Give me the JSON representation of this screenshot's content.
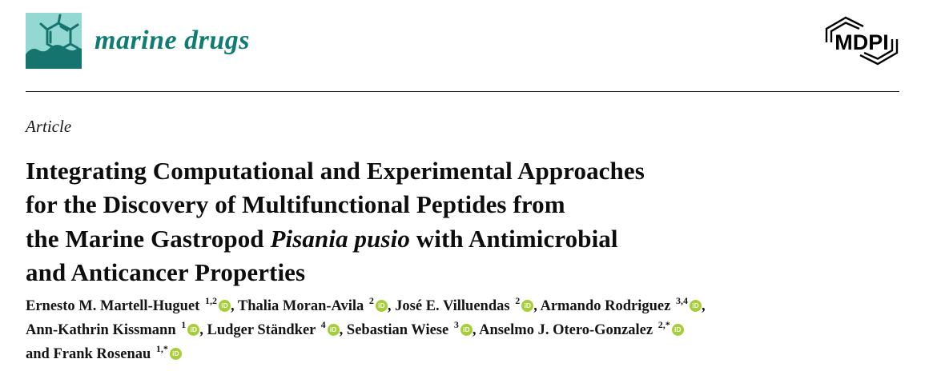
{
  "header": {
    "journal_name": "marine drugs",
    "publisher": "MDPI",
    "journal_color": "#0e7c72",
    "logo_bg_color": "#93d8d2",
    "logo_dark_color": "#15756e"
  },
  "article": {
    "type_label": "Article",
    "title_lines": [
      [
        {
          "text": "Integrating Computational and Experimental Approaches"
        }
      ],
      [
        {
          "text": "for the Discovery of Multifunctional Peptides from"
        }
      ],
      [
        {
          "text": "the Marine Gastropod "
        },
        {
          "text": "Pisania pusio",
          "italic": true
        },
        {
          "text": " with Antimicrobial"
        }
      ],
      [
        {
          "text": "and Anticancer Properties"
        }
      ]
    ]
  },
  "authors": {
    "orcid_color": "#a6ce39",
    "orcid_label": "iD",
    "lines": [
      [
        {
          "name": "Ernesto M. Martell-Huguet",
          "sup": "1,2",
          "orcid": true,
          "suffix": ", "
        },
        {
          "name": "Thalia Moran-Avila",
          "sup": "2",
          "orcid": true,
          "suffix": ", "
        },
        {
          "name": "José E. Villuendas",
          "sup": "2",
          "orcid": true,
          "suffix": ", "
        },
        {
          "name": "Armando Rodriguez",
          "sup": "3,4",
          "orcid": true,
          "suffix": ","
        }
      ],
      [
        {
          "name": "Ann-Kathrin Kissmann",
          "sup": "1",
          "orcid": true,
          "suffix": ", "
        },
        {
          "name": "Ludger Ständker",
          "sup": "4",
          "orcid": true,
          "suffix": ", "
        },
        {
          "name": "Sebastian Wiese",
          "sup": "3",
          "orcid": true,
          "suffix": ", "
        },
        {
          "name": "Anselmo J. Otero-Gonzalez",
          "sup": "2,*",
          "orcid": true,
          "suffix": ""
        }
      ],
      [
        {
          "prefix": "and ",
          "name": "Frank Rosenau",
          "sup": "1,*",
          "orcid": true,
          "suffix": ""
        }
      ]
    ]
  }
}
